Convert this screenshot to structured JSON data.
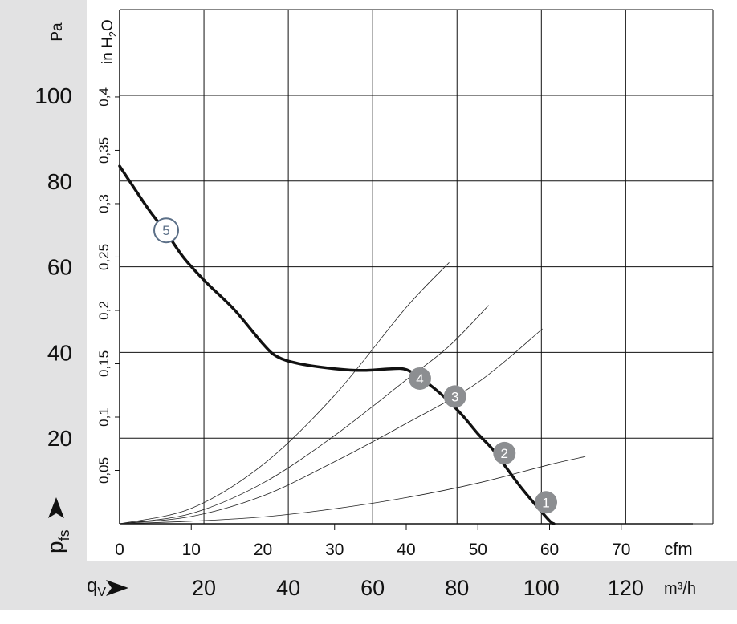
{
  "chart_data": {
    "type": "line",
    "title": "",
    "x_axis_primary": {
      "unit": "cfm",
      "range": [
        0,
        80
      ],
      "ticks": [
        0,
        10,
        20,
        30,
        40,
        50,
        60,
        70
      ]
    },
    "x_axis_secondary": {
      "symbol": "q",
      "subscript": "V",
      "unit": "m³/h",
      "ticks": [
        20,
        40,
        60,
        80,
        100,
        120
      ]
    },
    "y_axis_primary": {
      "symbol": "p",
      "subscript": "fs",
      "unit": "Pa",
      "range": [
        0,
        100
      ],
      "ticks": [
        20,
        40,
        60,
        80,
        100
      ]
    },
    "y_axis_secondary": {
      "unit": "in H",
      "unit_sub": "2",
      "unit_suffix": "O",
      "ticks": [
        "0,05",
        "0,1",
        "0,15",
        "0,2",
        "0,25",
        "0,3",
        "0,35",
        "0,4"
      ],
      "tick_values": [
        0.05,
        0.1,
        0.15,
        0.2,
        0.25,
        0.3,
        0.35,
        0.4
      ]
    },
    "grid": true,
    "series": [
      {
        "values": [
          [
            0,
            83.5
          ],
          [
            4,
            73.5
          ],
          [
            6.3,
            68.5
          ],
          [
            9,
            62
          ],
          [
            12,
            56.5
          ],
          [
            16,
            50
          ],
          [
            20,
            42
          ],
          [
            22,
            39
          ],
          [
            25,
            37.4
          ],
          [
            30,
            36.2
          ],
          [
            34,
            35.8
          ],
          [
            38,
            36.2
          ],
          [
            40,
            36
          ],
          [
            42,
            34
          ],
          [
            44,
            31.5
          ],
          [
            46,
            28.5
          ],
          [
            48,
            25
          ],
          [
            50,
            21
          ],
          [
            52,
            17.5
          ],
          [
            54,
            13
          ],
          [
            56,
            8.5
          ],
          [
            58,
            4.5
          ],
          [
            60,
            0.7
          ],
          [
            60.6,
            0
          ]
        ]
      },
      {
        "values": [
          [
            0,
            0
          ],
          [
            10,
            0.6
          ],
          [
            20,
            1.6
          ],
          [
            30,
            3.5
          ],
          [
            40,
            6.1
          ],
          [
            50,
            9.5
          ],
          [
            60,
            13.8
          ],
          [
            65,
            15.7
          ]
        ]
      },
      {
        "values": [
          [
            0,
            0
          ],
          [
            10,
            1.7
          ],
          [
            20,
            6.5
          ],
          [
            30,
            14.5
          ],
          [
            40,
            23.4
          ],
          [
            50,
            33
          ],
          [
            59,
            45.5
          ]
        ]
      },
      {
        "values": [
          [
            0,
            0
          ],
          [
            10,
            2.4
          ],
          [
            20,
            9.5
          ],
          [
            30,
            20.6
          ],
          [
            40,
            33.6
          ],
          [
            46,
            41.5
          ],
          [
            51.5,
            51
          ]
        ]
      },
      {
        "values": [
          [
            0,
            0
          ],
          [
            10,
            3.6
          ],
          [
            20,
            13.8
          ],
          [
            30,
            30
          ],
          [
            40,
            50.5
          ],
          [
            46,
            61
          ]
        ]
      }
    ],
    "markers": [
      {
        "label": "1",
        "x": 59.5,
        "y": 5,
        "style": "filled"
      },
      {
        "label": "2",
        "x": 53.7,
        "y": 16.5,
        "style": "filled"
      },
      {
        "label": "3",
        "x": 46.8,
        "y": 29.7,
        "style": "filled"
      },
      {
        "label": "4",
        "x": 41.9,
        "y": 33.9,
        "style": "filled"
      },
      {
        "label": "5",
        "x": 6.5,
        "y": 68.5,
        "style": "outline"
      }
    ],
    "colors": {
      "panel": "#e2e2e3",
      "curve": "#111111",
      "marker_fill": "#8c8e91",
      "marker_outline": "#5c7088"
    }
  }
}
